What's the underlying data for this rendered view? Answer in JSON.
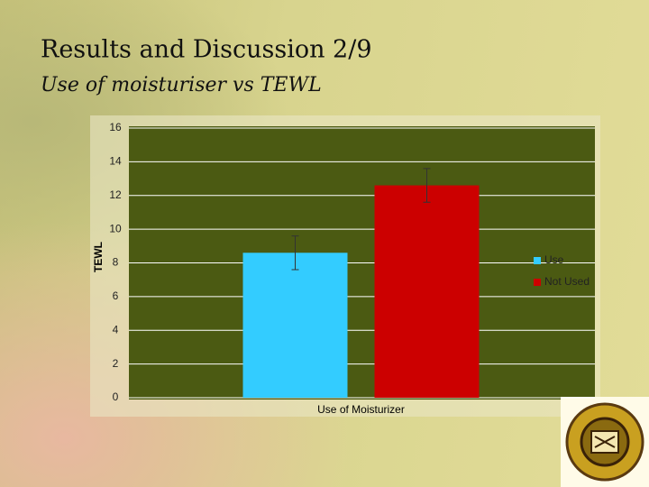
{
  "chart_data": {
    "type": "bar",
    "title": "Results and Discussion 2/9",
    "subtitle": "Use of moisturiser vs TEWL",
    "y_label": "TEWL",
    "categories": [
      "Use of Moisturizer"
    ],
    "series": [
      {
        "name": "Use",
        "color": "#33ccff",
        "values": [
          8.6
        ],
        "errors": [
          1.0
        ]
      },
      {
        "name": "Not Used",
        "color": "#cc0000",
        "values": [
          12.6
        ],
        "errors": [
          1.0
        ]
      }
    ],
    "ylim": [
      0,
      16
    ],
    "yticks": [
      0,
      2,
      4,
      6,
      8,
      10,
      12,
      14,
      16
    ],
    "grid": true,
    "legend": "right"
  }
}
